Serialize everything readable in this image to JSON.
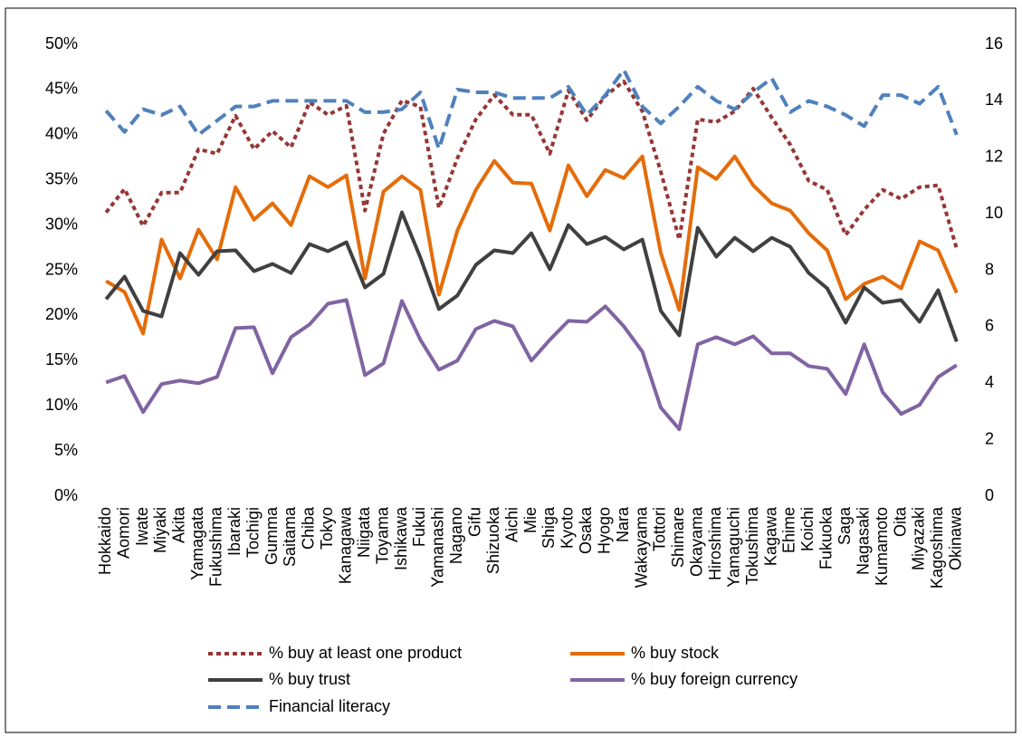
{
  "chart_data": {
    "type": "line",
    "categories": [
      "Hokkaido",
      "Aomori",
      "Iwate",
      "Miyaki",
      "Akita",
      "Yamagata",
      "Fukushima",
      "Ibaraki",
      "Tochigi",
      "Gumma",
      "Saitama",
      "Chiba",
      "Tokyo",
      "Kanagawa",
      "Niigata",
      "Toyama",
      "Ishikawa",
      "Fukui",
      "Yamanashi",
      "Nagano",
      "Gifu",
      "Shizuoka",
      "Aichi",
      "Mie",
      "Shiga",
      "Kyoto",
      "Osaka",
      "Hyogo",
      "Nara",
      "Wakayama",
      "Tottori",
      "Shimare",
      "Okayama",
      "Hiroshima",
      "Yamaguchi",
      "Tokushima",
      "Kagawa",
      "Ehime",
      "Koichi",
      "Fukuoka",
      "Saga",
      "Nagasaki",
      "Kumamoto",
      "Oita",
      "Miyazaki",
      "Kagoshima",
      "Okinawa"
    ],
    "series": [
      {
        "name": "% buy at least one product",
        "color": "#953735",
        "dash": "dot",
        "values": [
          31.4,
          34,
          29.9,
          33.6,
          33.6,
          38.4,
          37.9,
          42.1,
          38.4,
          40.4,
          38.6,
          43.6,
          42.2,
          43.2,
          31.6,
          40.1,
          43.8,
          43.1,
          31.9,
          37.4,
          41.7,
          44.4,
          42.2,
          42.2,
          37.9,
          44.9,
          41.6,
          44.3,
          45.9,
          42.6,
          35.9,
          28.4,
          41.7,
          41.4,
          42.6,
          45.1,
          41.9,
          38.9,
          34.9,
          33.9,
          28.9,
          31.7,
          33.9,
          32.9,
          34.2,
          34.4,
          27.4
        ]
      },
      {
        "name": "% buy stock",
        "color": "#e46c0a",
        "dash": "solid",
        "values": [
          23.8,
          22.6,
          18,
          28.4,
          24.1,
          29.5,
          26.2,
          34.2,
          30.6,
          32.4,
          30,
          35.4,
          34.2,
          35.5,
          24.1,
          33.7,
          35.4,
          33.9,
          22.3,
          29.4,
          33.9,
          37.1,
          34.7,
          34.6,
          29.4,
          36.6,
          33.2,
          36.1,
          35.2,
          37.6,
          26.9,
          20.6,
          36.4,
          35.1,
          37.6,
          34.4,
          32.4,
          31.6,
          29.1,
          27.2,
          21.8,
          23.5,
          24.3,
          23,
          28.2,
          27.2,
          22.5
        ]
      },
      {
        "name": "% buy trust",
        "color": "#404040",
        "dash": "solid",
        "values": [
          21.8,
          24.3,
          20.5,
          19.9,
          26.9,
          24.5,
          27.1,
          27.2,
          24.9,
          25.7,
          24.7,
          27.9,
          27.1,
          28.1,
          23.1,
          24.6,
          31.4,
          26.4,
          20.7,
          22.2,
          25.6,
          27.2,
          26.9,
          29.1,
          25.1,
          30,
          27.9,
          28.7,
          27.3,
          28.4,
          20.5,
          17.8,
          29.7,
          26.5,
          28.6,
          27.1,
          28.6,
          27.6,
          24.7,
          23,
          19.2,
          23.1,
          21.4,
          21.7,
          19.3,
          22.8,
          17.1
        ]
      },
      {
        "name": "% buy foreign currency",
        "color": "#8064a2",
        "dash": "solid",
        "values": [
          12.6,
          13.3,
          9.3,
          12.4,
          12.8,
          12.5,
          13.2,
          18.6,
          18.7,
          13.6,
          17.6,
          19,
          21.3,
          21.7,
          13.4,
          14.7,
          21.6,
          17.3,
          14,
          15,
          18.5,
          19.4,
          18.8,
          15,
          17.3,
          19.4,
          19.3,
          21,
          18.8,
          16,
          9.8,
          7.4,
          16.8,
          17.6,
          16.8,
          17.7,
          15.8,
          15.8,
          14.4,
          14.1,
          11.3,
          16.8,
          11.5,
          9.1,
          10.1,
          13.2,
          14.5
        ]
      },
      {
        "name": "Financial literacy",
        "color": "#4f81bd",
        "dash": "dash",
        "axis": "y2",
        "values": [
          13.65,
          12.9,
          13.7,
          13.5,
          13.8,
          12.8,
          13.3,
          13.8,
          13.8,
          14,
          14,
          14,
          14,
          14,
          13.6,
          13.6,
          13.7,
          14.3,
          12.3,
          14.4,
          14.3,
          14.3,
          14.1,
          14.1,
          14.1,
          14.5,
          13.5,
          14.2,
          15.1,
          13.8,
          13.2,
          13.8,
          14.5,
          14,
          13.7,
          14.3,
          14.8,
          13.6,
          14,
          13.8,
          13.5,
          13.1,
          14.2,
          14.2,
          13.9,
          14.5,
          12.8
        ]
      }
    ],
    "ylim": [
      0,
      50
    ],
    "yticks": [
      {
        "value": 0,
        "label": "0%"
      },
      {
        "value": 5,
        "label": "5%"
      },
      {
        "value": 10,
        "label": "10%"
      },
      {
        "value": 15,
        "label": "15%"
      },
      {
        "value": 20,
        "label": "20%"
      },
      {
        "value": 25,
        "label": "25%"
      },
      {
        "value": 30,
        "label": "30%"
      },
      {
        "value": 35,
        "label": "35%"
      },
      {
        "value": 40,
        "label": "40%"
      },
      {
        "value": 45,
        "label": "45%"
      },
      {
        "value": 50,
        "label": "50%"
      }
    ],
    "y2lim": [
      0,
      16
    ],
    "y2ticks": [
      0,
      2,
      4,
      6,
      8,
      10,
      12,
      14,
      16
    ],
    "grid": false,
    "legend": "bottom"
  }
}
